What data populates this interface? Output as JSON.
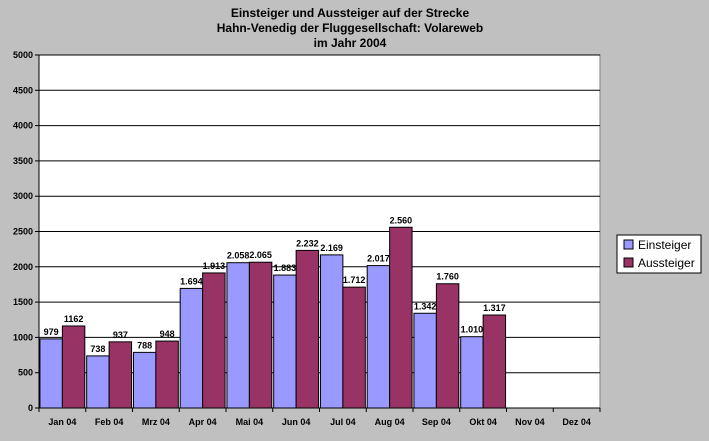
{
  "chart_data": {
    "type": "bar",
    "title_lines": [
      "Einsteiger und Aussteiger auf der Strecke",
      "Hahn-Venedig der Fluggesellschaft: Volareweb",
      "im Jahr 2004"
    ],
    "categories": [
      "Jan 04",
      "Feb 04",
      "Mrz 04",
      "Apr 04",
      "Mai 04",
      "Jun 04",
      "Jul 04",
      "Aug 04",
      "Sep 04",
      "Okt 04",
      "Nov 04",
      "Dez 04"
    ],
    "series": [
      {
        "name": "Einsteiger",
        "color": "#9999ff",
        "values": [
          979,
          738,
          788,
          1694,
          2058,
          1883,
          2169,
          2017,
          1342,
          1010,
          null,
          null
        ],
        "labels": [
          "979",
          "738",
          "788",
          "1.694",
          "2.058",
          "1.883",
          "2.169",
          "2.017",
          "1.342",
          "1.010",
          "",
          ""
        ]
      },
      {
        "name": "Aussteiger",
        "color": "#993366",
        "values": [
          1162,
          937,
          948,
          1913,
          2065,
          2232,
          1712,
          2560,
          1760,
          1317,
          null,
          null
        ],
        "labels": [
          "1162",
          "937",
          "948",
          "1.913",
          "2.065",
          "2.232",
          "1.712",
          "2.560",
          "1.760",
          "1.317",
          "",
          ""
        ]
      }
    ],
    "ylim": [
      0,
      5000
    ],
    "yticks": [
      0,
      500,
      1000,
      1500,
      2000,
      2500,
      3000,
      3500,
      4000,
      4500,
      5000
    ],
    "grid": true,
    "legend_position": "right",
    "plot_background": "#ffffff",
    "chart_background": "#c0c0c0"
  }
}
